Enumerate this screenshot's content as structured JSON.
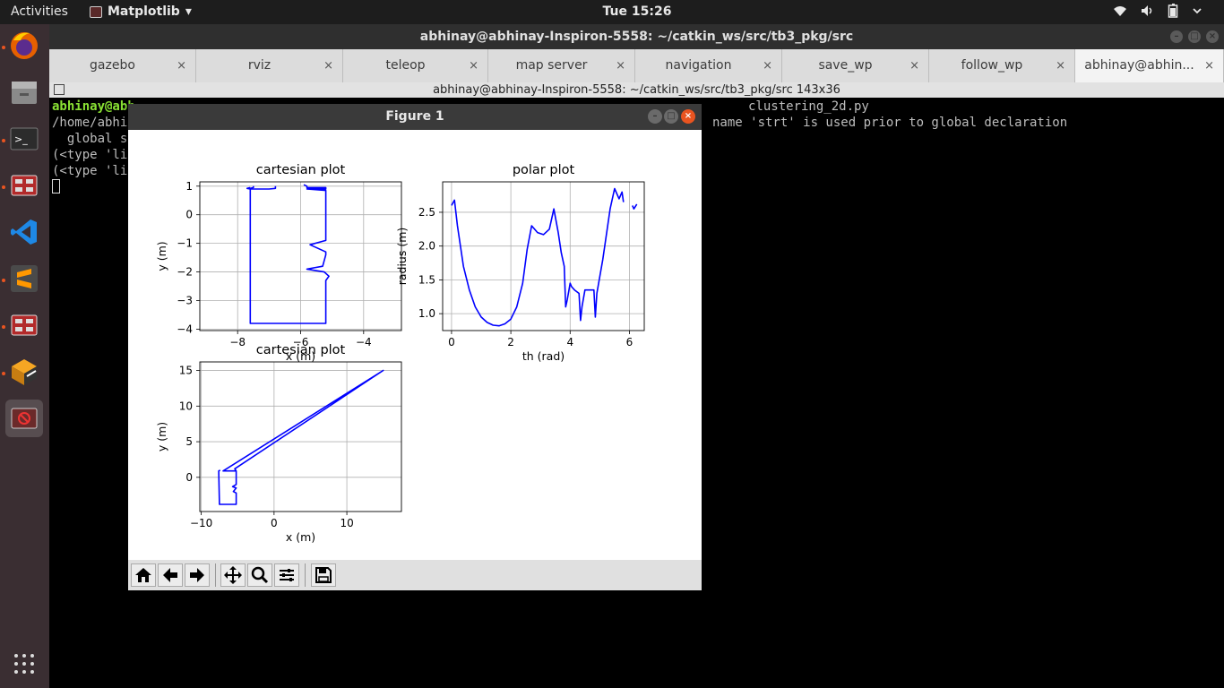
{
  "topbar": {
    "activities": "Activities",
    "app_name": "Matplotlib",
    "app_menu_arrow": "▾",
    "clock": "Tue 15:26",
    "tray_icons": [
      "wifi-icon",
      "volume-icon",
      "battery-icon",
      "power-menu-icon"
    ]
  },
  "dock": {
    "items": [
      "firefox-icon",
      "files-icon",
      "terminal-icon",
      "app-icon",
      "vscode-icon",
      "sublime-icon",
      "app-icon",
      "installer-icon",
      "matplotlib-app-icon"
    ],
    "show_apps": "show-applications-icon"
  },
  "terminal_window": {
    "title": "abhinay@abhinay-Inspiron-5558: ~/catkin_ws/src/tb3_pkg/src",
    "tabs": [
      {
        "label": "gazebo",
        "active": false
      },
      {
        "label": "rviz",
        "active": false
      },
      {
        "label": "teleop",
        "active": false
      },
      {
        "label": "map server",
        "active": false
      },
      {
        "label": "navigation",
        "active": false
      },
      {
        "label": "save_wp",
        "active": false
      },
      {
        "label": "follow_wp",
        "active": false
      },
      {
        "label": "abhinay@abhin...",
        "active": true
      }
    ],
    "close_glyph": "×",
    "subtitle": "abhinay@abhinay-Inspiron-5558: ~/catkin_ws/src/tb3_pkg/src 143x36",
    "lines": {
      "prompt_user": "abhinay@abh",
      "line1_right": "clustering_2d.py",
      "line2_left": "/home/abhi",
      "line2_right": "name 'strt' is used prior to global declaration",
      "line3_left": "  global s",
      "line4_left": "(<type 'li",
      "line5_left": "(<type 'li"
    }
  },
  "figure": {
    "title": "Figure 1",
    "toolbar": [
      "home-icon",
      "back-icon",
      "forward-icon",
      "pan-icon",
      "zoom-icon",
      "subplots-icon",
      "save-icon"
    ]
  },
  "chart_data": [
    {
      "type": "line",
      "title": "cartesian plot",
      "xlabel": "x (m)",
      "ylabel": "y (m)",
      "xlim": [
        -9.2,
        -2.8
      ],
      "ylim": [
        -4.05,
        1.15
      ],
      "xticks": [
        -8,
        -6,
        -4
      ],
      "yticks": [
        1,
        0,
        -1,
        -2,
        -3,
        -4
      ],
      "grid": true,
      "color": "#0000ff",
      "series": [
        {
          "x": [
            -7.5,
            -7.5,
            -7.6,
            -7.6,
            -5.2,
            -5.2,
            -5.1,
            -5.25,
            -5.8,
            -5.3,
            -5.2,
            -5.2,
            -5.7,
            -5.2,
            -5.2,
            -5.8,
            -5.2,
            -5.2,
            -5.8,
            -5.8,
            -5.9
          ],
          "y": [
            1.0,
            0.95,
            0.92,
            -3.8,
            -3.8,
            -2.3,
            -2.15,
            -2.0,
            -1.9,
            -1.8,
            -1.4,
            -1.3,
            -1.05,
            -0.9,
            0.85,
            0.9,
            0.9,
            0.95,
            0.95,
            1.0,
            1.05
          ]
        },
        {
          "x": [
            -7.6,
            -7.7,
            -7.6,
            -7.0,
            -6.8,
            -6.8
          ],
          "y": [
            0.95,
            0.92,
            0.9,
            0.9,
            0.92,
            1.0
          ]
        }
      ]
    },
    {
      "type": "line",
      "title": "polar plot",
      "xlabel": "th (rad)",
      "ylabel": "radius (m)",
      "xlim": [
        -0.3,
        6.5
      ],
      "ylim": [
        0.75,
        2.95
      ],
      "xticks": [
        0,
        2,
        4,
        6
      ],
      "yticks": [
        1.0,
        1.5,
        2.0,
        2.5
      ],
      "grid": true,
      "color": "#0000ff",
      "series": [
        {
          "x": [
            0.0,
            0.1,
            0.2,
            0.4,
            0.6,
            0.8,
            1.0,
            1.2,
            1.4,
            1.6,
            1.8,
            2.0,
            2.2,
            2.4,
            2.55,
            2.7,
            2.9,
            3.1,
            3.3,
            3.45,
            3.6,
            3.7,
            3.8,
            3.85,
            3.9,
            4.0,
            4.05,
            4.15,
            4.3,
            4.35,
            4.4,
            4.5,
            4.65,
            4.8,
            4.85,
            4.9,
            5.0,
            5.1,
            5.2,
            5.35,
            5.5,
            5.6,
            5.65,
            5.75,
            5.8
          ],
          "y": [
            2.6,
            2.68,
            2.3,
            1.7,
            1.35,
            1.1,
            0.95,
            0.87,
            0.83,
            0.82,
            0.85,
            0.92,
            1.1,
            1.45,
            1.95,
            2.3,
            2.2,
            2.17,
            2.25,
            2.55,
            2.2,
            1.9,
            1.7,
            1.1,
            1.2,
            1.45,
            1.4,
            1.35,
            1.3,
            0.9,
            1.1,
            1.35,
            1.35,
            1.35,
            0.95,
            1.3,
            1.55,
            1.8,
            2.1,
            2.55,
            2.85,
            2.75,
            2.7,
            2.8,
            2.65
          ]
        },
        {
          "x": [
            6.1,
            6.15,
            6.25
          ],
          "y": [
            2.6,
            2.55,
            2.62
          ]
        }
      ]
    },
    {
      "type": "line",
      "title": "cartesian plot",
      "xlabel": "x (m)",
      "ylabel": "y (m)",
      "xlim": [
        -10.2,
        17.5
      ],
      "ylim": [
        -4.8,
        16.2
      ],
      "xticks": [
        -10,
        0,
        10
      ],
      "yticks": [
        15,
        10,
        5,
        0
      ],
      "grid": true,
      "color": "#0000ff",
      "series": [
        {
          "x": [
            -7.4,
            -7.6,
            -7.5,
            -5.2,
            -5.2,
            -5.6,
            -5.2,
            -5.7,
            -5.2,
            -5.2,
            -7.0,
            15.0,
            -5.4,
            -5.2
          ],
          "y": [
            1.0,
            0.9,
            -3.8,
            -3.8,
            -2.2,
            -2.0,
            -1.5,
            -1.3,
            -1.0,
            0.9,
            0.9,
            15.0,
            1.2,
            0.9
          ]
        }
      ]
    }
  ]
}
